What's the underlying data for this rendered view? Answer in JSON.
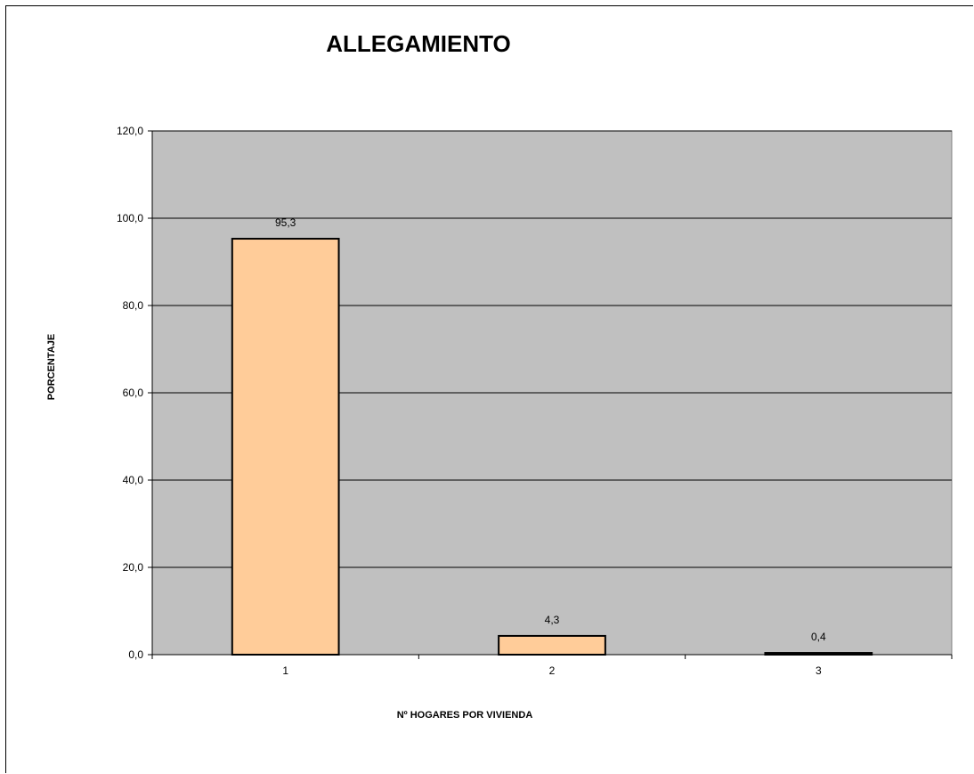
{
  "chart_data": {
    "type": "bar",
    "title": "ALLEGAMIENTO",
    "xlabel": "Nº HOGARES POR VIVIENDA",
    "ylabel": "PORCENTAJE",
    "categories": [
      "1",
      "2",
      "3"
    ],
    "values": [
      95.3,
      4.3,
      0.4
    ],
    "data_labels": [
      "95,3",
      "4,3",
      "0,4"
    ],
    "ylim": [
      0,
      120
    ],
    "y_ticks": [
      0,
      20,
      40,
      60,
      80,
      100,
      120
    ],
    "y_tick_labels": [
      "0,0",
      "20,0",
      "40,0",
      "60,0",
      "80,0",
      "100,0",
      "120,0"
    ],
    "grid": true,
    "legend": "none",
    "colors": {
      "bar_fill": "#FFCC99",
      "bar_stroke": "#000000",
      "plot_background": "#C0C0C0",
      "gridline": "#000000"
    }
  }
}
